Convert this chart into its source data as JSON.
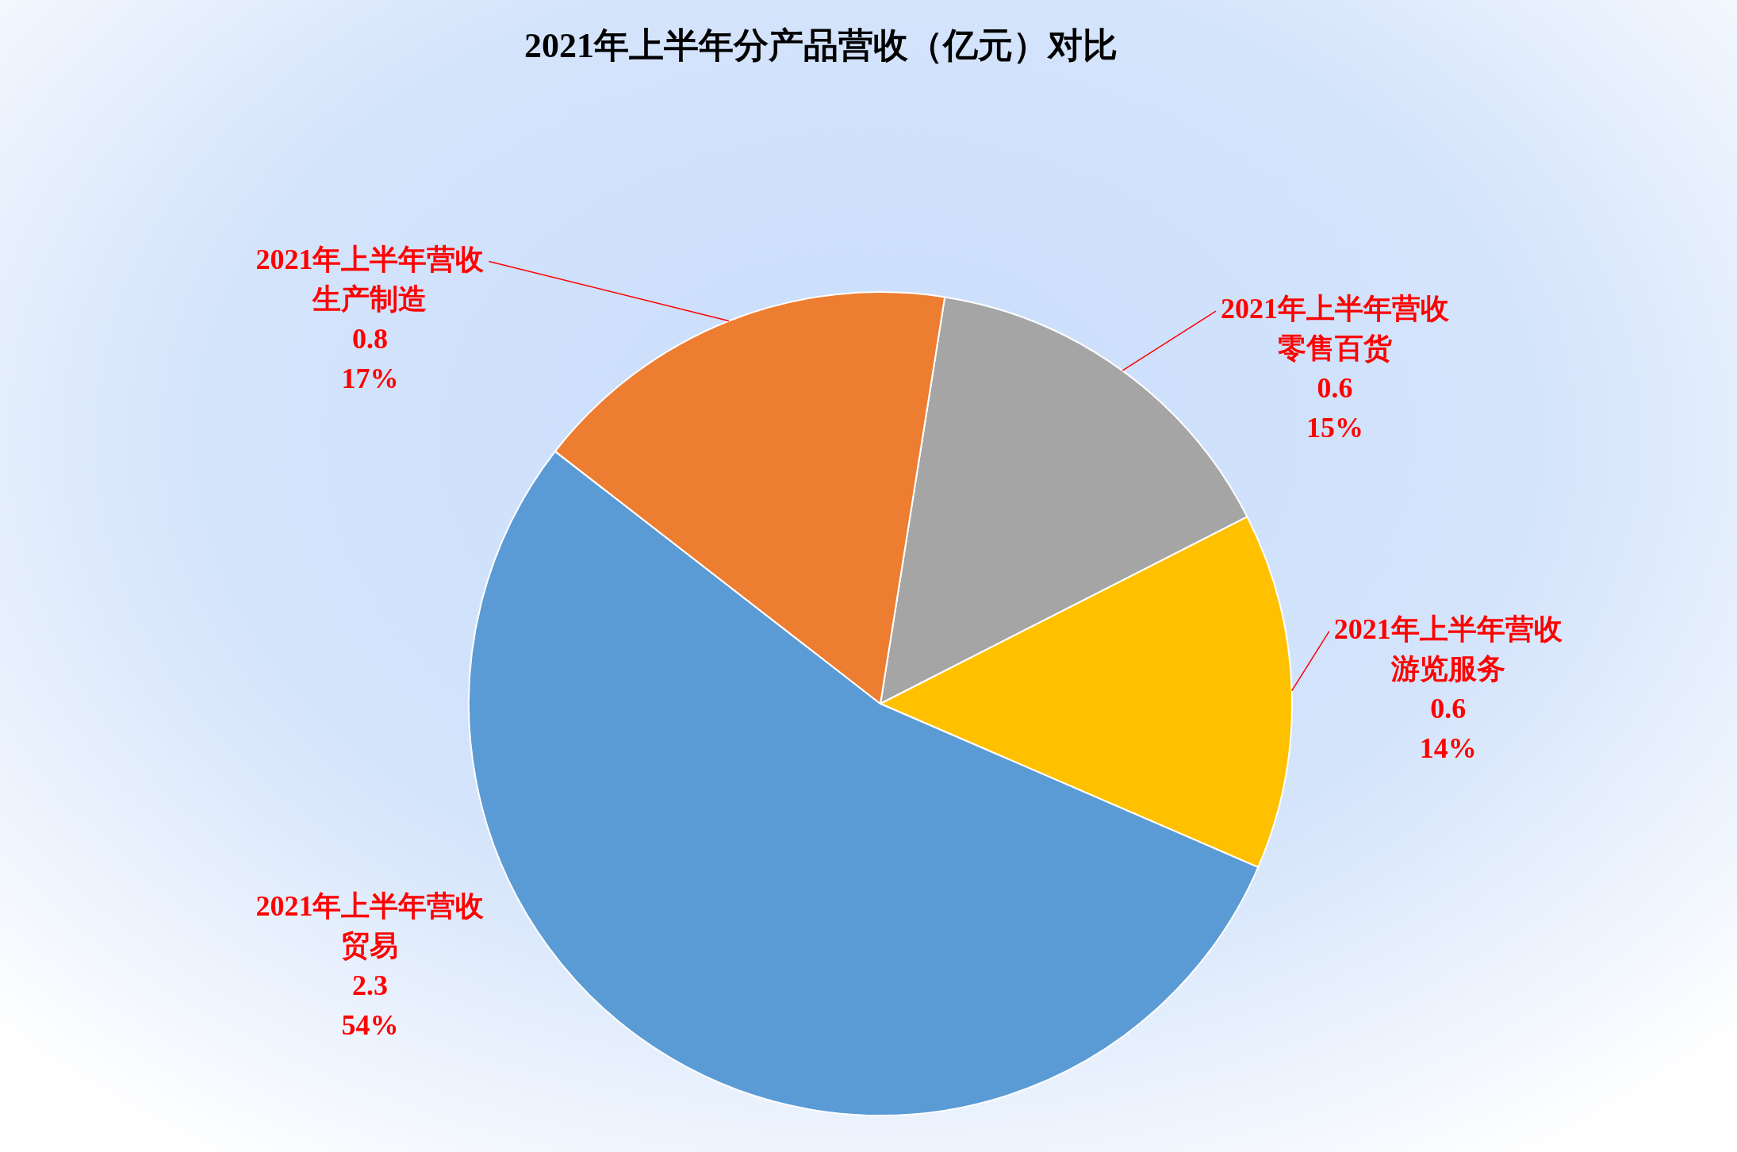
{
  "chart_data": {
    "type": "pie",
    "title": "2021年上半年分产品营收（亿元）对比",
    "categories": [
      "零售百货",
      "游览服务",
      "贸易",
      "生产制造"
    ],
    "series": [
      {
        "name": "2021年上半年营收",
        "values": [
          15,
          14,
          54,
          17
        ],
        "value_labels": [
          "0.6\n15%",
          "0.6\n14%",
          "2.3\n54%",
          "0.8\n17%"
        ]
      }
    ],
    "colors": [
      "#a5a5a5",
      "#ffc000",
      "#5b9bd5",
      "#ed7d31"
    ]
  }
}
